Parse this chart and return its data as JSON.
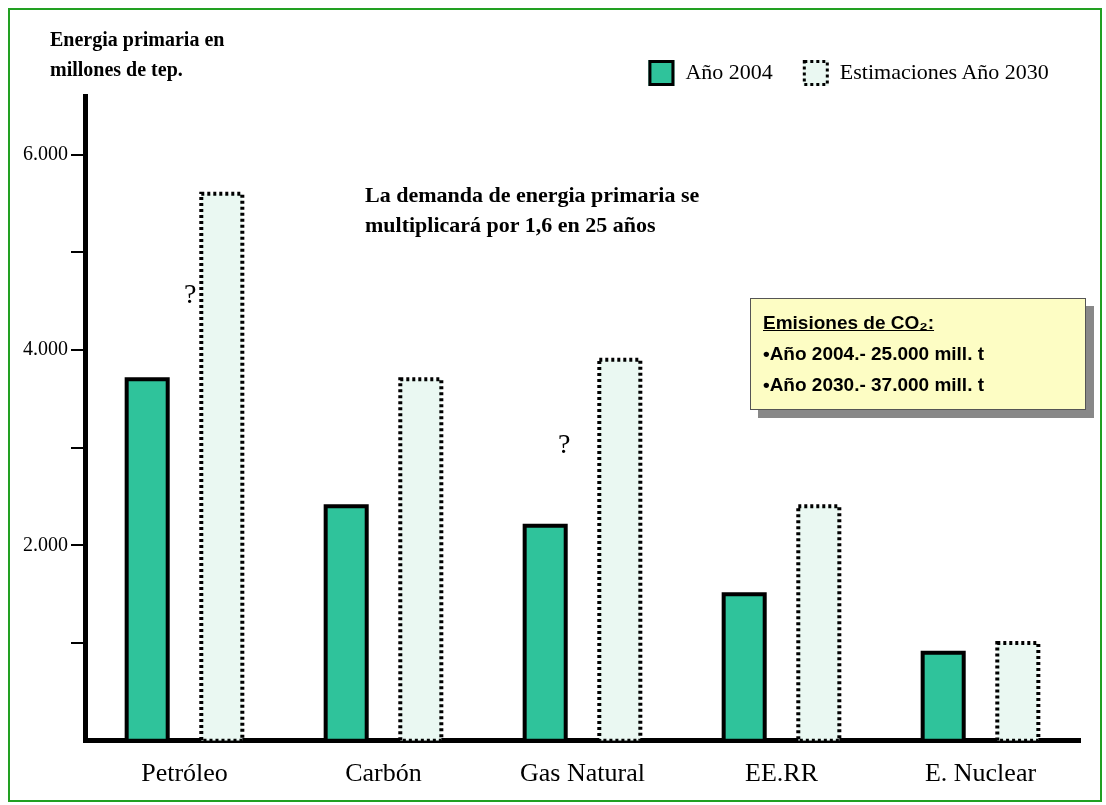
{
  "chart_data": {
    "type": "bar",
    "ylabel": "Energia primaria en millones de tep.",
    "categories": [
      "Petróleo",
      "Carbón",
      "Gas Natural",
      "EE.RR",
      "E. Nuclear"
    ],
    "series": [
      {
        "name": "Año 2004",
        "color": "#2fc39b",
        "line_style": "solid",
        "values": [
          3700,
          2400,
          2200,
          1500,
          900
        ]
      },
      {
        "name": "Estimaciones Año 2030",
        "color": "#eaf8f2",
        "line_style": "dotted",
        "values": [
          5600,
          3700,
          3900,
          2400,
          1000
        ]
      }
    ],
    "ylim": [
      0,
      6600
    ],
    "yticks": [
      {
        "value": 1000,
        "label": null
      },
      {
        "value": 2000,
        "label": "2.000"
      },
      {
        "value": 3000,
        "label": null
      },
      {
        "value": 4000,
        "label": "4.000"
      },
      {
        "value": 5000,
        "label": null
      },
      {
        "value": 6000,
        "label": "6.000"
      }
    ],
    "grid": false,
    "legend": "top right",
    "annotations": [
      "La demanda de energia primaria se multiplicará por 1,6 en 25 años",
      "?",
      "?",
      "Emisiones de CO₂:",
      "•Año 2004.- 25.000 mill. t",
      "•Año 2030.- 37.000 mill. t"
    ]
  }
}
